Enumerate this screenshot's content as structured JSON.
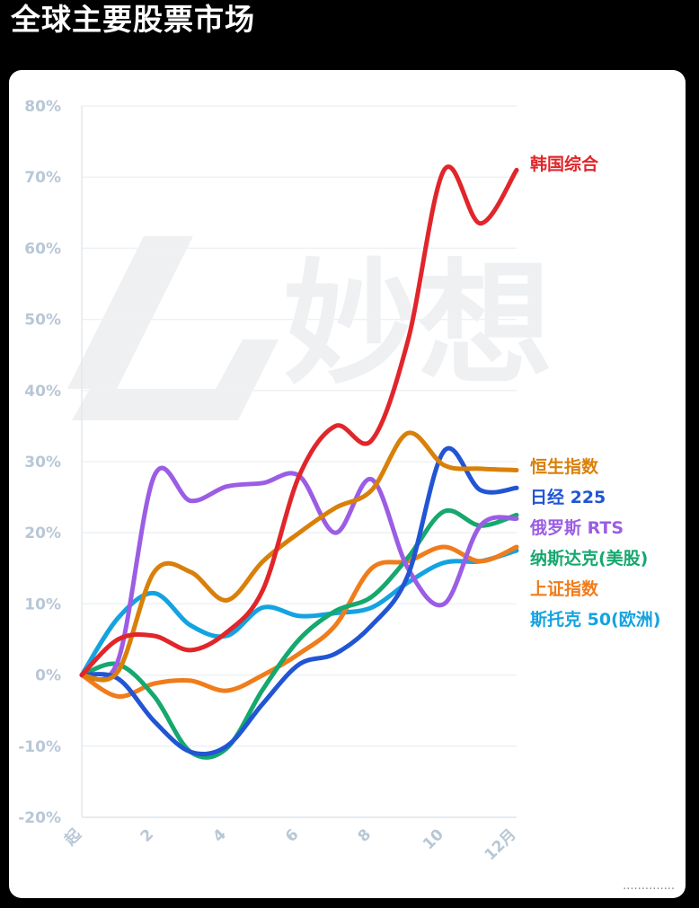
{
  "page": {
    "title": "全球主要股票市场"
  },
  "watermark": {
    "text": "妙想"
  },
  "chart_data": {
    "type": "line",
    "x": [
      0,
      1,
      2,
      3,
      4,
      5,
      6,
      7,
      8,
      9,
      10,
      11,
      12
    ],
    "x_tick_labels": [
      {
        "x": 0,
        "label": "起"
      },
      {
        "x": 2,
        "label": "2"
      },
      {
        "x": 4,
        "label": "4"
      },
      {
        "x": 6,
        "label": "6"
      },
      {
        "x": 8,
        "label": "8"
      },
      {
        "x": 10,
        "label": "10"
      },
      {
        "x": 12,
        "label": "12月"
      }
    ],
    "y_ticks": [
      {
        "value": 80,
        "label": "80%"
      },
      {
        "value": 70,
        "label": "70%"
      },
      {
        "value": 60,
        "label": "60%"
      },
      {
        "value": 50,
        "label": "50%"
      },
      {
        "value": 40,
        "label": "40%"
      },
      {
        "value": 30,
        "label": "30%"
      },
      {
        "value": 20,
        "label": "20%"
      },
      {
        "value": 10,
        "label": "10%"
      },
      {
        "value": 0,
        "label": "0%"
      },
      {
        "value": -10,
        "label": "-10%"
      },
      {
        "value": -20,
        "label": "-20%"
      }
    ],
    "ylim": [
      -20,
      80
    ],
    "xlim": [
      0,
      12
    ],
    "grid": true,
    "legend_placement": "right, labels at line ends",
    "series": [
      {
        "name": "韩国综合",
        "color": "#e0262b",
        "values": [
          0,
          5,
          5.5,
          3.5,
          6,
          12,
          28,
          35,
          33,
          47,
          71,
          63.5,
          71
        ]
      },
      {
        "name": "恒生指数",
        "color": "#d9800a",
        "values": [
          0,
          0.5,
          14.5,
          14.5,
          10.5,
          16,
          20,
          23.5,
          26,
          34,
          29.5,
          29,
          28.8
        ]
      },
      {
        "name": "日经 225",
        "color": "#2155d4",
        "values": [
          0,
          -0.5,
          -6.5,
          -10.8,
          -10,
          -4,
          1.5,
          3,
          7,
          14,
          31.5,
          26,
          26.3
        ]
      },
      {
        "name": "俄罗斯 RTS",
        "color": "#9b5de5",
        "values": [
          0,
          2,
          28,
          24.5,
          26.5,
          27,
          28,
          20,
          27.5,
          15,
          10,
          21,
          22
        ]
      },
      {
        "name": "纳斯达克(美股)",
        "color": "#16a86e",
        "values": [
          0,
          1.5,
          -3,
          -10.8,
          -10.3,
          -2,
          5,
          9,
          11,
          16.5,
          23,
          21,
          22.5
        ]
      },
      {
        "name": "上证指数",
        "color": "#f07c1b",
        "values": [
          0,
          -3,
          -1.2,
          -0.8,
          -2.2,
          0,
          3,
          7,
          15,
          16,
          18,
          16,
          18
        ]
      },
      {
        "name": "斯托克 50(欧洲)",
        "color": "#14a3e0",
        "values": [
          0,
          8,
          11.5,
          7,
          5.5,
          9.5,
          8.3,
          8.7,
          9.5,
          13,
          15.8,
          16,
          17.5
        ]
      }
    ]
  }
}
